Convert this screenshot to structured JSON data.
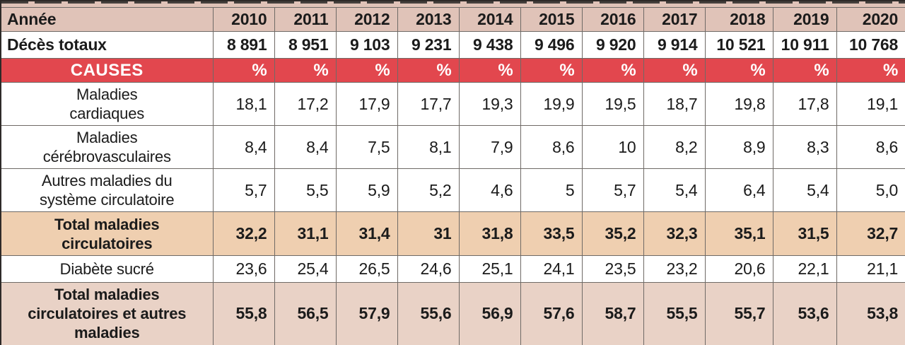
{
  "colors": {
    "header_bg": "#e0c3b8",
    "causes_red": "#e2474e",
    "total_warm_bg": "#efcfb0",
    "total_pink_bg": "#e9d2c6",
    "border_gray": "#6f6a66",
    "text": "#1b1b1b",
    "causes_text": "#ffffff"
  },
  "table": {
    "rows": [
      {
        "kind": "year-header",
        "label": "Année",
        "cells": [
          "2010",
          "2011",
          "2012",
          "2013",
          "2014",
          "2015",
          "2016",
          "2017",
          "2018",
          "2019",
          "2020"
        ]
      },
      {
        "kind": "deaths-total",
        "label": "Décès totaux",
        "cells": [
          "8 891",
          "8 951",
          "9 103",
          "9 231",
          "9 438",
          "9 496",
          "9 920",
          "9 914",
          "10 521",
          "10 911",
          "10 768"
        ]
      },
      {
        "kind": "causes-header",
        "label": "CAUSES",
        "cells": [
          "%",
          "%",
          "%",
          "%",
          "%",
          "%",
          "%",
          "%",
          "%",
          "%",
          "%"
        ]
      },
      {
        "kind": "cause",
        "label": "Maladies\ncardiaques",
        "cells": [
          "18,1",
          "17,2",
          "17,9",
          "17,7",
          "19,3",
          "19,9",
          "19,5",
          "18,7",
          "19,8",
          "17,8",
          "19,1"
        ]
      },
      {
        "kind": "cause",
        "label": "Maladies\ncérébrovasculaires",
        "cells": [
          "8,4",
          "8,4",
          "7,5",
          "8,1",
          "7,9",
          "8,6",
          "10",
          "8,2",
          "8,9",
          "8,3",
          "8,6"
        ]
      },
      {
        "kind": "cause",
        "label": "Autres maladies du\nsystème circulatoire",
        "cells": [
          "5,7",
          "5,5",
          "5,9",
          "5,2",
          "4,6",
          "5",
          "5,7",
          "5,4",
          "6,4",
          "5,4",
          "5,0"
        ]
      },
      {
        "kind": "total-warm",
        "label": "Total maladies\ncirculatoires",
        "cells": [
          "32,2",
          "31,1",
          "31,4",
          "31",
          "31,8",
          "33,5",
          "35,2",
          "32,3",
          "35,1",
          "31,5",
          "32,7"
        ]
      },
      {
        "kind": "cause",
        "label": "Diabète sucré",
        "cells": [
          "23,6",
          "25,4",
          "26,5",
          "24,6",
          "25,1",
          "24,1",
          "23,5",
          "23,2",
          "20,6",
          "22,1",
          "21,1"
        ]
      },
      {
        "kind": "total-pink",
        "label": "Total maladies\ncirculatoires et autres\nmaladies",
        "cells": [
          "55,8",
          "56,5",
          "57,9",
          "55,6",
          "56,9",
          "57,6",
          "58,7",
          "55,5",
          "55,7",
          "53,6",
          "53,8"
        ]
      }
    ]
  },
  "chart_data": {
    "type": "table",
    "x": [
      2010,
      2011,
      2012,
      2013,
      2014,
      2015,
      2016,
      2017,
      2018,
      2019,
      2020
    ],
    "x_label": "Année",
    "deaths_total_label": "Décès totaux",
    "deaths_total": [
      8891,
      8951,
      9103,
      9231,
      9438,
      9496,
      9920,
      9914,
      10521,
      10911,
      10768
    ],
    "causes_header": "CAUSES",
    "unit": "%",
    "series": [
      {
        "name": "Maladies cardiaques",
        "values": [
          18.1,
          17.2,
          17.9,
          17.7,
          19.3,
          19.9,
          19.5,
          18.7,
          19.8,
          17.8,
          19.1
        ]
      },
      {
        "name": "Maladies cérébrovasculaires",
        "values": [
          8.4,
          8.4,
          7.5,
          8.1,
          7.9,
          8.6,
          10,
          8.2,
          8.9,
          8.3,
          8.6
        ]
      },
      {
        "name": "Autres maladies du système circulatoire",
        "values": [
          5.7,
          5.5,
          5.9,
          5.2,
          4.6,
          5,
          5.7,
          5.4,
          6.4,
          5.4,
          5.0
        ]
      },
      {
        "name": "Total maladies circulatoires",
        "values": [
          32.2,
          31.1,
          31.4,
          31,
          31.8,
          33.5,
          35.2,
          32.3,
          35.1,
          31.5,
          32.7
        ]
      },
      {
        "name": "Diabète sucré",
        "values": [
          23.6,
          25.4,
          26.5,
          24.6,
          25.1,
          24.1,
          23.5,
          23.2,
          20.6,
          22.1,
          21.1
        ]
      },
      {
        "name": "Total maladies circulatoires et autres maladies",
        "values": [
          55.8,
          56.5,
          57.9,
          55.6,
          56.9,
          57.6,
          58.7,
          55.5,
          55.7,
          53.6,
          53.8
        ]
      }
    ]
  }
}
